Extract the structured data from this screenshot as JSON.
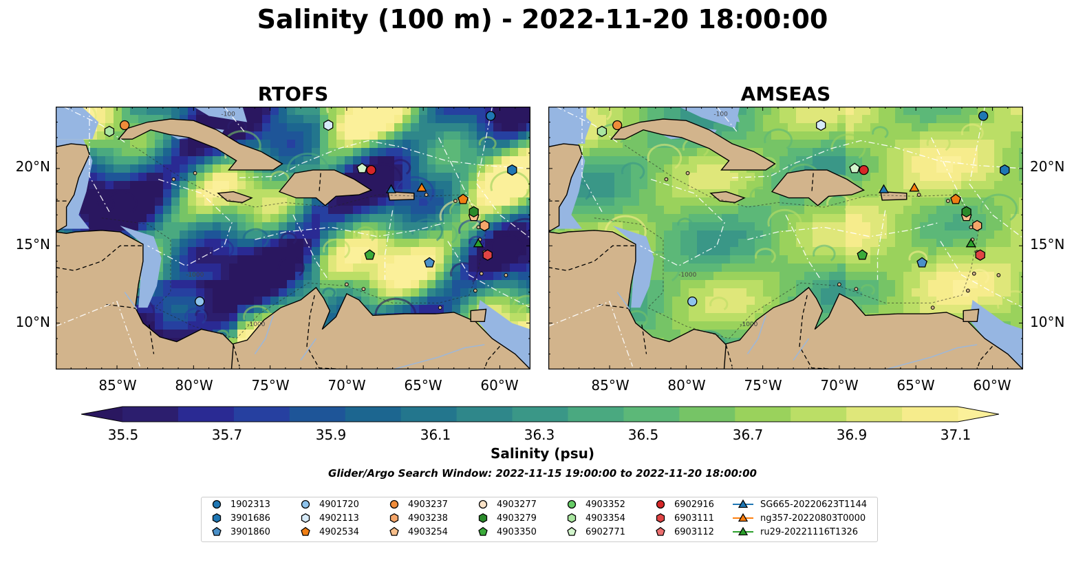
{
  "title": "Salinity (100 m) - 2022-11-20 18:00:00",
  "panels": [
    {
      "title": "RTOFS",
      "model": "rtofs"
    },
    {
      "title": "AMSEAS",
      "model": "amseas"
    }
  ],
  "axes": {
    "lon_ticks": [
      "85°W",
      "80°W",
      "75°W",
      "70°W",
      "65°W",
      "60°W"
    ],
    "lat_ticks": [
      "20°N",
      "15°N",
      "10°N"
    ],
    "lon_range": [
      -89,
      -58
    ],
    "lat_range": [
      7,
      24
    ]
  },
  "colorbar": {
    "label": "Salinity (psu)",
    "min": 35.5,
    "max": 37.1,
    "step": 0.1,
    "tick_labels": [
      "35.5",
      "35.7",
      "35.9",
      "36.1",
      "36.3",
      "36.5",
      "36.7",
      "36.9",
      "37.1"
    ],
    "colors": [
      "#2c1e6e",
      "#2a2a93",
      "#2640a0",
      "#1e5598",
      "#1c6690",
      "#23768d",
      "#2f878a",
      "#3a9787",
      "#4aa980",
      "#5cb878",
      "#76c466",
      "#9ad25c",
      "#bbde66",
      "#dfe77a",
      "#f6ec8c"
    ],
    "extend": "both",
    "under_color": "#2a1760",
    "over_color": "#fbf09a"
  },
  "search_window": "Glider/Argo Search Window: 2022-11-15 19:00:00 to 2022-11-20 18:00:00",
  "contour_labels": [
    "-100",
    "-1000"
  ],
  "legend": [
    {
      "label": "1902313",
      "marker": "circle",
      "color": "#1f77b4"
    },
    {
      "label": "3901686",
      "marker": "hexagon",
      "color": "#1f77b4"
    },
    {
      "label": "3901860",
      "marker": "pentagon",
      "color": "#4a90c8"
    },
    {
      "label": "4901720",
      "marker": "circle",
      "color": "#8ec3ec"
    },
    {
      "label": "4902113",
      "marker": "hexagon",
      "color": "#d6eaf8"
    },
    {
      "label": "4902534",
      "marker": "pentagon",
      "color": "#f07f14"
    },
    {
      "label": "4903237",
      "marker": "circle",
      "color": "#f08c3a"
    },
    {
      "label": "4903238",
      "marker": "hexagon",
      "color": "#f5a66a"
    },
    {
      "label": "4903254",
      "marker": "pentagon",
      "color": "#f7be8a"
    },
    {
      "label": "4903277",
      "marker": "circle",
      "color": "#fbe3c8"
    },
    {
      "label": "4903279",
      "marker": "hexagon",
      "color": "#2a8a2a"
    },
    {
      "label": "4903350",
      "marker": "pentagon",
      "color": "#3aaa3a"
    },
    {
      "label": "4903352",
      "marker": "circle",
      "color": "#66cc66"
    },
    {
      "label": "4903354",
      "marker": "hexagon",
      "color": "#a9e6a0"
    },
    {
      "label": "6902771",
      "marker": "pentagon",
      "color": "#d2f5cc"
    },
    {
      "label": "6902916",
      "marker": "circle",
      "color": "#d62728"
    },
    {
      "label": "6903111",
      "marker": "hexagon",
      "color": "#e04444"
    },
    {
      "label": "6903112",
      "marker": "pentagon",
      "color": "#ec6f6f"
    },
    {
      "label": "SG665-20220623T1144",
      "marker": "triangle-line",
      "color": "#1f77b4"
    },
    {
      "label": "ng357-20220803T0000",
      "marker": "triangle-line",
      "color": "#ff7f0e"
    },
    {
      "label": "ru29-20221116T1326",
      "marker": "triangle-line",
      "color": "#2ca02c"
    }
  ],
  "observations": [
    {
      "id": "1902313",
      "lon": -60.6,
      "lat": 23.4
    },
    {
      "id": "3901686",
      "lon": -59.2,
      "lat": 19.9
    },
    {
      "id": "3901860",
      "lon": -64.6,
      "lat": 13.9
    },
    {
      "id": "4901720",
      "lon": -79.6,
      "lat": 11.4
    },
    {
      "id": "4902113",
      "lon": -71.2,
      "lat": 22.8
    },
    {
      "id": "4902534",
      "lon": -62.4,
      "lat": 18.0
    },
    {
      "id": "4903237",
      "lon": -84.5,
      "lat": 22.8
    },
    {
      "id": "4903238",
      "lon": -61.0,
      "lat": 16.3
    },
    {
      "id": "4903254",
      "lon": -61.7,
      "lat": 16.9
    },
    {
      "id": "4903279",
      "lon": -61.7,
      "lat": 17.2
    },
    {
      "id": "4903350",
      "lon": -68.5,
      "lat": 14.4
    },
    {
      "id": "4903354",
      "lon": -85.5,
      "lat": 22.4
    },
    {
      "id": "6902771",
      "lon": -69.0,
      "lat": 20.0
    },
    {
      "id": "6902916",
      "lon": -68.4,
      "lat": 19.9
    },
    {
      "id": "6903111",
      "lon": -60.8,
      "lat": 14.4
    },
    {
      "id": "SG665-20220623T1144",
      "lon": -67.1,
      "lat": 18.6
    },
    {
      "id": "ng357-20220803T0000",
      "lon": -65.1,
      "lat": 18.7
    },
    {
      "id": "ru29-20221116T1326",
      "lon": -61.4,
      "lat": 15.1
    }
  ]
}
